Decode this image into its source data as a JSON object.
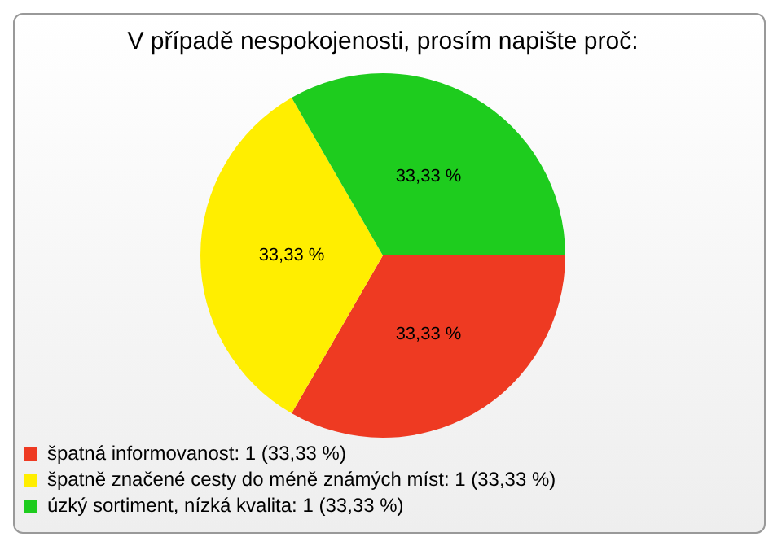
{
  "chart_data": {
    "type": "pie",
    "title": "V případě nespokojenosti, prosím napište proč:",
    "categories": [
      "špatná informovanost: 1 (33,33 %)",
      "špatně značené cesty do méně známých míst: 1 (33,33 %)",
      "úzký sortiment, nízká kvalita: 1 (33,33 %)"
    ],
    "values": [
      33.33,
      33.33,
      33.33
    ],
    "value_labels": [
      "33,33 %",
      "33,33 %",
      "33,33 %"
    ],
    "colors": [
      "#ee3a22",
      "#ffee00",
      "#1ecc1e"
    ],
    "legend": "bottom left"
  }
}
